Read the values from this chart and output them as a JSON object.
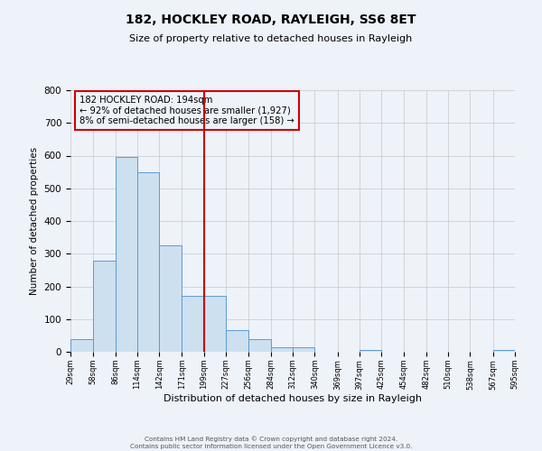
{
  "title": "182, HOCKLEY ROAD, RAYLEIGH, SS6 8ET",
  "subtitle": "Size of property relative to detached houses in Rayleigh",
  "xlabel": "Distribution of detached houses by size in Rayleigh",
  "ylabel": "Number of detached properties",
  "bin_edges": [
    29,
    58,
    86,
    114,
    142,
    171,
    199,
    227,
    256,
    284,
    312,
    340,
    369,
    397,
    425,
    454,
    482,
    510,
    538,
    567,
    595
  ],
  "bin_labels": [
    "29sqm",
    "58sqm",
    "86sqm",
    "114sqm",
    "142sqm",
    "171sqm",
    "199sqm",
    "227sqm",
    "256sqm",
    "284sqm",
    "312sqm",
    "340sqm",
    "369sqm",
    "397sqm",
    "425sqm",
    "454sqm",
    "482sqm",
    "510sqm",
    "538sqm",
    "567sqm",
    "595sqm"
  ],
  "bar_heights": [
    38,
    278,
    595,
    550,
    325,
    170,
    170,
    65,
    38,
    13,
    13,
    0,
    0,
    5,
    0,
    0,
    0,
    0,
    0,
    5
  ],
  "bar_facecolor": "#cce0f0",
  "bar_edgecolor": "#5b9bd5",
  "vline_x": 199,
  "vline_color": "#cc0000",
  "annotation_title": "182 HOCKLEY ROAD: 194sqm",
  "annotation_line1": "← 92% of detached houses are smaller (1,927)",
  "annotation_line2": "8% of semi-detached houses are larger (158) →",
  "annotation_box_color": "#cc0000",
  "ylim": [
    0,
    800
  ],
  "yticks": [
    0,
    100,
    200,
    300,
    400,
    500,
    600,
    700,
    800
  ],
  "grid_color": "#c8c8c8",
  "bg_color": "#eef2f9",
  "footer_line1": "Contains HM Land Registry data © Crown copyright and database right 2024.",
  "footer_line2": "Contains public sector information licensed under the Open Government Licence v3.0."
}
